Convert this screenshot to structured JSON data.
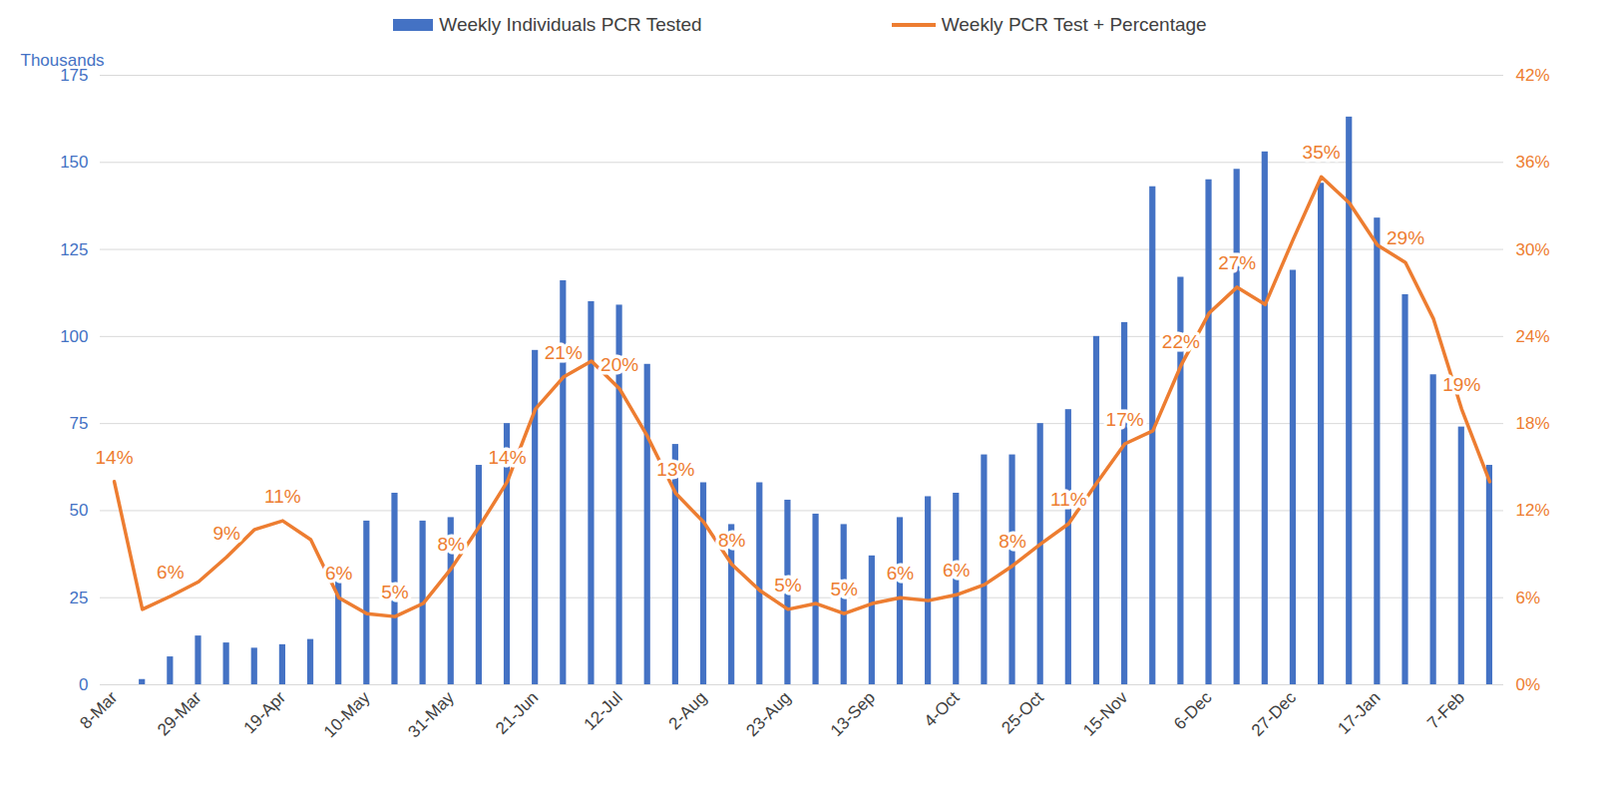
{
  "chart_data": {
    "type": "bar",
    "y_label": "Thousands",
    "categories": [
      "8-Mar",
      null,
      null,
      "29-Mar",
      null,
      null,
      "19-Apr",
      null,
      null,
      "10-May",
      null,
      null,
      "31-May",
      null,
      null,
      "21-Jun",
      null,
      null,
      "12-Jul",
      null,
      null,
      "2-Aug",
      null,
      null,
      "23-Aug",
      null,
      null,
      "13-Sep",
      null,
      null,
      "4-Oct",
      null,
      null,
      "25-Oct",
      null,
      null,
      "15-Nov",
      null,
      null,
      "6-Dec",
      null,
      null,
      "27-Dec",
      null,
      null,
      "17-Jan",
      null,
      null,
      "7-Feb",
      null
    ],
    "ylim": [
      0,
      175
    ],
    "yticks": [
      0,
      25,
      50,
      75,
      100,
      125,
      150,
      175
    ],
    "y2lim": [
      0,
      42
    ],
    "y2ticks": [
      {
        "value": 0,
        "label": "0%"
      },
      {
        "value": 6,
        "label": "6%"
      },
      {
        "value": 12,
        "label": "12%"
      },
      {
        "value": 18,
        "label": "18%"
      },
      {
        "value": 24,
        "label": "24%"
      },
      {
        "value": 30,
        "label": "30%"
      },
      {
        "value": 36,
        "label": "36%"
      },
      {
        "value": 42,
        "label": "42%"
      }
    ],
    "grid": true,
    "legend": "top",
    "series": [
      {
        "name": "Weekly Individuals PCR Tested",
        "type": "bar",
        "color": "#4472c4",
        "values": [
          0,
          1.5,
          8,
          14,
          12,
          10.5,
          11.5,
          13,
          30,
          47,
          55,
          47,
          48,
          63,
          75,
          96,
          116,
          110,
          109,
          92,
          69,
          58,
          46,
          58,
          53,
          49,
          46,
          37,
          48,
          54,
          55,
          66,
          66,
          75,
          79,
          100,
          104,
          143,
          117,
          145,
          148,
          153,
          119,
          144,
          163,
          134,
          112,
          89,
          74,
          63
        ]
      },
      {
        "name": "Weekly PCR Test + Percentage",
        "type": "line",
        "color": "#ed7d31",
        "axis": "y2",
        "data_labels": true,
        "values": [
          14,
          5.2,
          6.1,
          7.1,
          8.8,
          10.7,
          11.3,
          10,
          6,
          4.9,
          4.7,
          5.6,
          8,
          10.9,
          14,
          19,
          21.2,
          22.3,
          20.4,
          17.1,
          13.2,
          11.2,
          8.3,
          6.5,
          5.2,
          5.6,
          4.9,
          5.6,
          6,
          5.8,
          6.2,
          6.9,
          8.2,
          9.7,
          11.1,
          13.9,
          16.6,
          17.5,
          22,
          25.6,
          27.4,
          26.2,
          30.7,
          35,
          33.2,
          30.3,
          29.1,
          25.2,
          19,
          14
        ],
        "value_labels": [
          "14%",
          null,
          "6%",
          null,
          "9%",
          null,
          "11%",
          null,
          "6%",
          null,
          "5%",
          null,
          "8%",
          null,
          "14%",
          null,
          "21%",
          null,
          "20%",
          null,
          "13%",
          null,
          "8%",
          null,
          "5%",
          null,
          "5%",
          null,
          "6%",
          null,
          "6%",
          null,
          "8%",
          null,
          "11%",
          null,
          "17%",
          null,
          "22%",
          null,
          "27%",
          null,
          null,
          "35%",
          null,
          null,
          "29%",
          null,
          "19%",
          null
        ]
      }
    ]
  }
}
